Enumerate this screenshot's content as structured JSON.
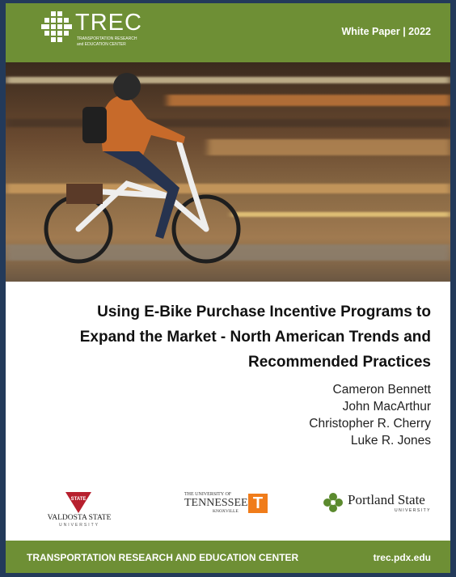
{
  "header": {
    "logo": {
      "name": "TREC",
      "line1": "TRANSPORTATION RESEARCH",
      "line2": "and EDUCATION CENTER"
    },
    "label": "White Paper | 2022"
  },
  "title": [
    "Using E-Bike Purchase Incentive Programs to",
    "Expand the Market - North American Trends and",
    "Recommended Practices"
  ],
  "authors": [
    "Cameron Bennett",
    "John MacArthur",
    "Christopher R. Cherry",
    "Luke R. Jones"
  ],
  "partners": {
    "valdosta": {
      "badge": "STATE",
      "name": "VALDOSTA STATE",
      "sub": "UNIVERSITY"
    },
    "tennessee": {
      "top": "THE UNIVERSITY OF",
      "name": "TENNESSEE",
      "sub": "KNOXVILLE",
      "mark": "T"
    },
    "portland": {
      "name": "Portland State",
      "sub": "UNIVERSITY"
    }
  },
  "footer": {
    "org": "TRANSPORTATION RESEARCH AND EDUCATION CENTER",
    "url": "trec.pdx.edu"
  }
}
